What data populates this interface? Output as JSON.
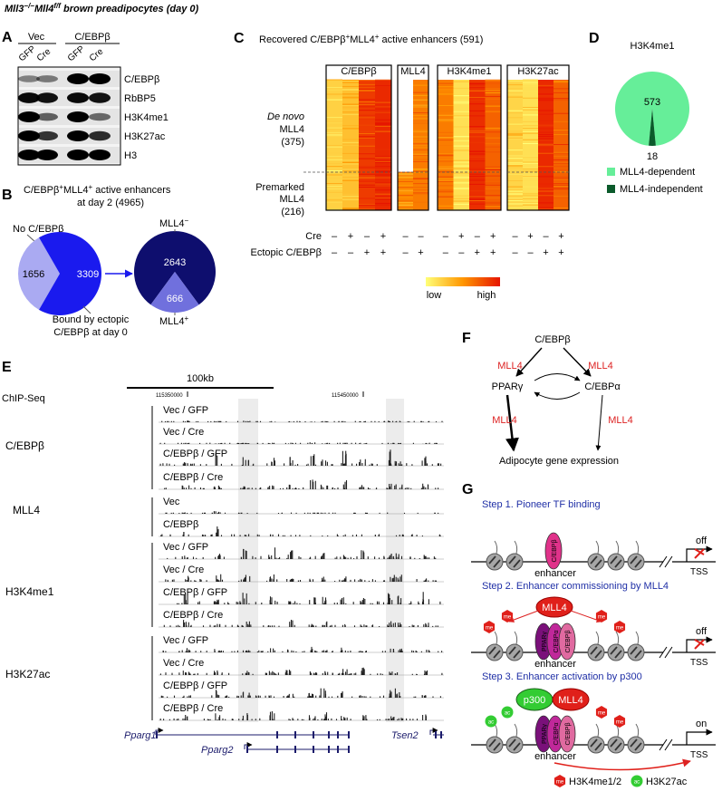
{
  "title": {
    "gene1": "Mll3",
    "sup1": "−/−",
    "gene2": "Mll4",
    "sup2": "f/f",
    "rest": " brown preadipocytes (day 0)"
  },
  "panel_a": {
    "letter": "A",
    "groups": [
      "Vec",
      "C/EBPβ"
    ],
    "lanes": [
      "GFP",
      "Cre",
      "GFP",
      "Cre"
    ],
    "rows": [
      "C/EBPβ",
      "RbBP5",
      "H3K4me1",
      "H3K27ac",
      "H3"
    ]
  },
  "panel_b": {
    "letter": "B",
    "title": {
      "p1": "C/EBPβ",
      "s1": "+",
      "p2": "MLL4",
      "s2": "+",
      "p3": " active enhancers",
      "line2": "at day 2 (4965)"
    },
    "no_label": "No C/EBPβ",
    "pie1": {
      "values": [
        1656,
        3309
      ]
    },
    "bound_label": [
      "Bound by ectopic",
      "C/EBPβ at day 0"
    ],
    "pie2": {
      "values": [
        2643,
        666
      ]
    },
    "minus_label": {
      "text": "MLL4",
      "sup": "−"
    },
    "plus_label": {
      "text": "MLL4",
      "sup": "+"
    }
  },
  "panel_c": {
    "letter": "C",
    "title": {
      "p1": "Recovered C/EBPβ",
      "s1": "+",
      "p2": "MLL4",
      "s2": "+",
      "p3": " active enhancers (591)"
    },
    "columns": [
      "C/EBPβ",
      "MLL4",
      "H3K4me1",
      "H3K27ac"
    ],
    "de_novo": [
      "De novo",
      "MLL4",
      "(375)"
    ],
    "premarked": [
      "Premarked",
      "MLL4",
      "(216)"
    ],
    "cre_label": "Cre",
    "ectopic_label": "Ectopic C/EBPβ",
    "cre_signs": [
      [
        "–",
        "+",
        "–",
        "+"
      ],
      [
        "–",
        "–"
      ],
      [
        "–",
        "+",
        "–",
        "+"
      ],
      [
        "–",
        "+",
        "–",
        "+"
      ]
    ],
    "ectopic_signs": [
      [
        "–",
        "–",
        "+",
        "+"
      ],
      [
        "–",
        "+"
      ],
      [
        "–",
        "–",
        "+",
        "+"
      ],
      [
        "–",
        "–",
        "+",
        "+"
      ]
    ],
    "scale": [
      "low",
      "high"
    ]
  },
  "panel_d": {
    "letter": "D",
    "title": "H3K4me1",
    "values": [
      573,
      18
    ],
    "legend": [
      "MLL4-dependent",
      "MLL4-independent"
    ]
  },
  "panel_e": {
    "letter": "E",
    "scale": "100kb",
    "coords": [
      "115350000",
      "115450000"
    ],
    "chipseq": "ChIP-Seq",
    "groups": [
      {
        "name": "C/EBPβ",
        "tracks": [
          "Vec / GFP",
          "Vec / Cre",
          "C/EBPβ / GFP",
          "C/EBPβ / Cre"
        ]
      },
      {
        "name": "MLL4",
        "tracks": [
          "Vec",
          "C/EBPβ"
        ]
      },
      {
        "name": "H3K4me1",
        "tracks": [
          "Vec / GFP",
          "Vec / Cre",
          "C/EBPβ / GFP",
          "C/EBPβ / Cre"
        ]
      },
      {
        "name": "H3K27ac",
        "tracks": [
          "Vec / GFP",
          "Vec / Cre",
          "C/EBPβ / GFP",
          "C/EBPβ / Cre"
        ]
      }
    ],
    "genes": [
      "Pparg1",
      "Pparg2",
      "Tsen2"
    ]
  },
  "panel_f": {
    "letter": "F",
    "top": "C/EBPβ",
    "left": "PPARγ",
    "right": "C/EBPα",
    "bottom": "Adipocyte gene expression",
    "mll4": [
      "MLL4",
      "MLL4",
      "MLL4",
      "MLL4"
    ]
  },
  "panel_g": {
    "letter": "G",
    "steps": [
      {
        "title": "Step 1. Pioneer TF binding",
        "state": "off",
        "tss": "TSS",
        "enhancer": "enhancer",
        "factors": [
          "C/EBPβ"
        ]
      },
      {
        "title": "Step 2. Enhancer commissioning by MLL4",
        "state": "off",
        "tss": "TSS",
        "enhancer": "enhancer",
        "factors": [
          "PPARγ",
          "C/EBPα",
          "C/EBPβ"
        ],
        "mll4": "MLL4",
        "marks": [
          "me",
          "me",
          "me",
          "me"
        ]
      },
      {
        "title": "Step 3. Enhancer activation by p300",
        "state": "on",
        "tss": "TSS",
        "enhancer": "enhancer",
        "factors": [
          "PPARγ",
          "C/EBPα",
          "C/EBPβ"
        ],
        "mll4": "MLL4",
        "p300": "p300",
        "ac_marks": [
          "ac",
          "ac"
        ],
        "marks": [
          "me",
          "me"
        ]
      }
    ],
    "legend": {
      "me": "me",
      "me_label": "H3K4me1/2",
      "ac": "ac",
      "ac_label": "H3K27ac"
    }
  }
}
